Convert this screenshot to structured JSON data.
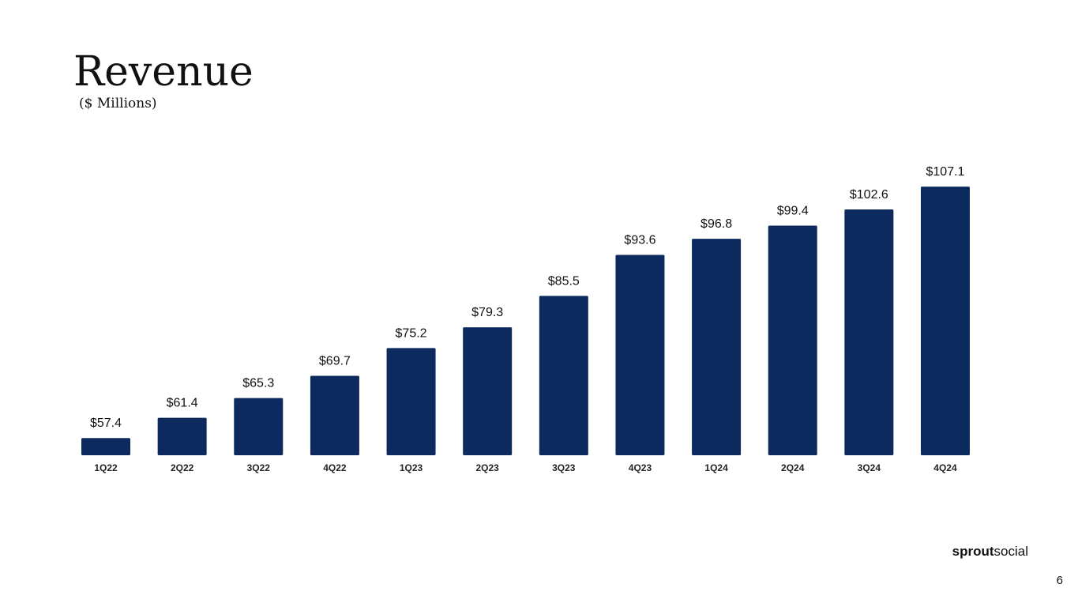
{
  "chart_data": {
    "type": "bar",
    "title": "Revenue",
    "subtitle": "($ Millions)",
    "categories": [
      "1Q22",
      "2Q22",
      "3Q22",
      "4Q22",
      "1Q23",
      "2Q23",
      "3Q23",
      "4Q23",
      "1Q24",
      "2Q24",
      "3Q24",
      "4Q24"
    ],
    "values": [
      57.4,
      61.4,
      65.3,
      69.7,
      75.2,
      79.3,
      85.5,
      93.6,
      96.8,
      99.4,
      102.6,
      107.1
    ],
    "value_labels": [
      "$57.4",
      "$61.4",
      "$65.3",
      "$69.7",
      "$75.2",
      "$79.3",
      "$85.5",
      "$93.6",
      "$96.8",
      "$99.4",
      "$102.6",
      "$107.1"
    ],
    "color": "#0d2a5e",
    "ylim": [
      54,
      110
    ],
    "grid": false
  },
  "footer": {
    "logo_bold": "sprout",
    "logo_light": "social",
    "page_number": "6"
  }
}
